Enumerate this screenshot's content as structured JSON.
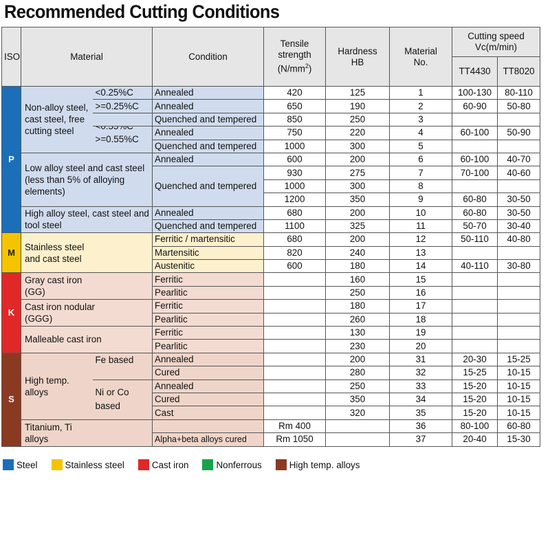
{
  "title": "Recommended Cutting Conditions",
  "header": {
    "iso": "ISO",
    "material": "Material",
    "condition": "Condition",
    "tensile": "Tensile strength",
    "tensile_unit_pre": "(N/mm",
    "tensile_unit_sup": "2",
    "tensile_unit_post": ")",
    "hardness": "Hardness HB",
    "material_no": "Material No.",
    "cutting_speed": "Cutting speed Vc(m/min)",
    "grade1": "TT4430",
    "grade2": "TT8020"
  },
  "iso_labels": {
    "P": "P",
    "M": "M",
    "K": "K",
    "S": "S"
  },
  "colors": {
    "steel": "#1a6fb8",
    "stainless": "#f5c400",
    "cast_iron": "#e02828",
    "nonferrous": "#16a34a",
    "high_temp": "#8b3a22"
  },
  "materials": {
    "nonalloy": "Non-alloy steel, cast steel, free cutting steel",
    "c1": "<0.25%C",
    "c2": ">=0.25%C",
    "c3": "<0.55%C",
    "c4": ">=0.55%C",
    "lowalloy": "Low alloy steel and cast steel (less than 5% of alloying elements)",
    "highalloy": "High alloy steel, cast steel and tool steel",
    "stainless": "Stainless steel and cast steel",
    "gray": "Gray cast iron (GG)",
    "nodular": "Cast iron nodular (GGG)",
    "malleable": "Malleable cast iron",
    "hightemp": "High temp. alloys",
    "fe": "Fe based",
    "ni": "Ni or Co based",
    "titanium": "Titanium, Ti alloys"
  },
  "rows": [
    {
      "condition": "Annealed",
      "tensile": "420",
      "hb": "125",
      "no": "1",
      "tt4430": "100-130",
      "tt8020": "80-110"
    },
    {
      "condition": "Annealed",
      "tensile": "650",
      "hb": "190",
      "no": "2",
      "tt4430": "60-90",
      "tt8020": "50-80"
    },
    {
      "condition": "Quenched and tempered",
      "tensile": "850",
      "hb": "250",
      "no": "3",
      "tt4430": "",
      "tt8020": ""
    },
    {
      "condition": "Annealed",
      "tensile": "750",
      "hb": "220",
      "no": "4",
      "tt4430": "60-100",
      "tt8020": "50-90"
    },
    {
      "condition": "Quenched and tempered",
      "tensile": "1000",
      "hb": "300",
      "no": "5",
      "tt4430": "",
      "tt8020": ""
    },
    {
      "condition": "Annealed",
      "tensile": "600",
      "hb": "200",
      "no": "6",
      "tt4430": "60-100",
      "tt8020": "40-70"
    },
    {
      "condition": "Quenched and tempered",
      "tensile": "930",
      "hb": "275",
      "no": "7",
      "tt4430": "70-100",
      "tt8020": "40-60"
    },
    {
      "condition": "",
      "tensile": "1000",
      "hb": "300",
      "no": "8",
      "tt4430": "",
      "tt8020": ""
    },
    {
      "condition": "",
      "tensile": "1200",
      "hb": "350",
      "no": "9",
      "tt4430": "60-80",
      "tt8020": "30-50"
    },
    {
      "condition": "Annealed",
      "tensile": "680",
      "hb": "200",
      "no": "10",
      "tt4430": "60-80",
      "tt8020": "30-50"
    },
    {
      "condition": "Quenched and tempered",
      "tensile": "1100",
      "hb": "325",
      "no": "11",
      "tt4430": "50-70",
      "tt8020": "30-40"
    },
    {
      "condition": "Ferritic / martensitic",
      "tensile": "680",
      "hb": "200",
      "no": "12",
      "tt4430": "50-110",
      "tt8020": "40-80"
    },
    {
      "condition": "Martensitic",
      "tensile": "820",
      "hb": "240",
      "no": "13",
      "tt4430": "",
      "tt8020": ""
    },
    {
      "condition": "Austenitic",
      "tensile": "600",
      "hb": "180",
      "no": "14",
      "tt4430": "40-110",
      "tt8020": "30-80"
    },
    {
      "condition": "Ferritic",
      "tensile": "",
      "hb": "160",
      "no": "15",
      "tt4430": "",
      "tt8020": ""
    },
    {
      "condition": "Pearlitic",
      "tensile": "",
      "hb": "250",
      "no": "16",
      "tt4430": "",
      "tt8020": ""
    },
    {
      "condition": "Ferritic",
      "tensile": "",
      "hb": "180",
      "no": "17",
      "tt4430": "",
      "tt8020": ""
    },
    {
      "condition": "Pearlitic",
      "tensile": "",
      "hb": "260",
      "no": "18",
      "tt4430": "",
      "tt8020": ""
    },
    {
      "condition": "Ferritic",
      "tensile": "",
      "hb": "130",
      "no": "19",
      "tt4430": "",
      "tt8020": ""
    },
    {
      "condition": "Pearlitic",
      "tensile": "",
      "hb": "230",
      "no": "20",
      "tt4430": "",
      "tt8020": ""
    },
    {
      "condition": "Annealed",
      "tensile": "",
      "hb": "200",
      "no": "31",
      "tt4430": "20-30",
      "tt8020": "15-25"
    },
    {
      "condition": "Cured",
      "tensile": "",
      "hb": "280",
      "no": "32",
      "tt4430": "15-25",
      "tt8020": "10-15"
    },
    {
      "condition": "Annealed",
      "tensile": "",
      "hb": "250",
      "no": "33",
      "tt4430": "15-20",
      "tt8020": "10-15"
    },
    {
      "condition": "Cured",
      "tensile": "",
      "hb": "350",
      "no": "34",
      "tt4430": "15-20",
      "tt8020": "10-15"
    },
    {
      "condition": "Cast",
      "tensile": "",
      "hb": "320",
      "no": "35",
      "tt4430": "15-20",
      "tt8020": "10-15"
    },
    {
      "condition": "",
      "tensile": "Rm 400",
      "hb": "",
      "no": "36",
      "tt4430": "80-100",
      "tt8020": "60-80"
    },
    {
      "condition": "Alpha+beta alloys cured",
      "tensile": "Rm 1050",
      "hb": "",
      "no": "37",
      "tt4430": "20-40",
      "tt8020": "15-30"
    }
  ],
  "legend": [
    "Steel",
    "Stainless steel",
    "Cast iron",
    "Nonferrous",
    "High temp. alloys"
  ]
}
